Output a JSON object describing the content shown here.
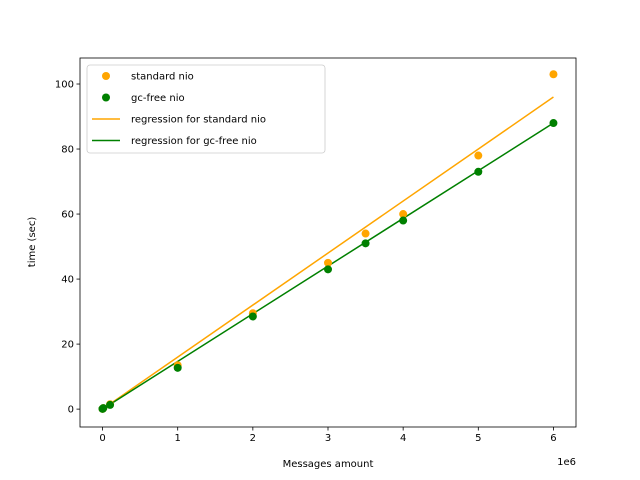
{
  "chart_data": {
    "type": "scatter",
    "title": "",
    "xlabel": "Messages amount",
    "ylabel": "time (sec)",
    "x_offset_label": "1e6",
    "xlim": [
      -300000,
      6300000
    ],
    "ylim": [
      -5.5,
      108
    ],
    "x_ticks": [
      0,
      1000000,
      2000000,
      3000000,
      4000000,
      5000000,
      6000000
    ],
    "x_tick_labels": [
      "0",
      "1",
      "2",
      "3",
      "4",
      "5",
      "6"
    ],
    "y_ticks": [
      0,
      20,
      40,
      60,
      80,
      100
    ],
    "y_tick_labels": [
      "0",
      "20",
      "40",
      "60",
      "80",
      "100"
    ],
    "grid": false,
    "legend_position": "upper-left",
    "series": [
      {
        "name": "standard nio",
        "kind": "scatter",
        "color": "#ffa500",
        "x": [
          0,
          1000,
          10000,
          100000,
          1000000,
          2000000,
          3000000,
          3500000,
          4000000,
          5000000,
          6000000
        ],
        "y": [
          0.1,
          0.1,
          0.3,
          1.5,
          13.5,
          29.5,
          45.0,
          54.0,
          60.0,
          78.0,
          103.0
        ]
      },
      {
        "name": "gc-free nio",
        "kind": "scatter",
        "color": "#008000",
        "x": [
          0,
          1000,
          10000,
          100000,
          1000000,
          2000000,
          3000000,
          3500000,
          4000000,
          5000000,
          6000000
        ],
        "y": [
          0.1,
          0.1,
          0.3,
          1.3,
          12.7,
          28.5,
          43.0,
          51.0,
          58.0,
          73.0,
          88.0
        ]
      },
      {
        "name": "regression for standard nio",
        "kind": "line",
        "color": "#ffa500",
        "x": [
          0,
          6000000
        ],
        "y": [
          0,
          96
        ]
      },
      {
        "name": "regression for gc-free nio",
        "kind": "line",
        "color": "#008000",
        "x": [
          0,
          6000000
        ],
        "y": [
          0,
          88
        ]
      }
    ]
  }
}
